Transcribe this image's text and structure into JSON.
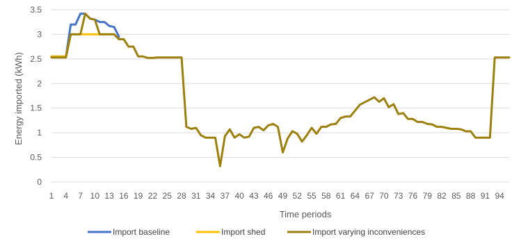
{
  "chart_data": {
    "type": "line",
    "title": "",
    "xlabel": "Time periods",
    "ylabel": "Energy imported (kWh)",
    "ylim": [
      0,
      3.5
    ],
    "yticks": [
      "0",
      "0.5",
      "1",
      "1.5",
      "2",
      "2.5",
      "3",
      "3.5"
    ],
    "x_tick_labels": [
      "1",
      "4",
      "7",
      "10",
      "13",
      "16",
      "19",
      "22",
      "25",
      "28",
      "31",
      "34",
      "37",
      "40",
      "43",
      "46",
      "49",
      "52",
      "55",
      "58",
      "61",
      "64",
      "67",
      "70",
      "73",
      "76",
      "79",
      "82",
      "85",
      "88",
      "91",
      "94"
    ],
    "grid": "horizontal",
    "legend_position": "bottom",
    "series": [
      {
        "name": "Import baseline",
        "color": "#4472C4",
        "x": [
          1,
          2,
          3,
          4,
          5,
          6,
          7,
          8,
          9,
          10,
          11,
          12,
          13,
          14,
          15
        ],
        "values": [
          2.55,
          2.55,
          2.55,
          2.55,
          3.2,
          3.2,
          3.42,
          3.42,
          3.32,
          3.3,
          3.25,
          3.25,
          3.17,
          3.15,
          2.95
        ]
      },
      {
        "name": "Import shed",
        "color": "#FFC000",
        "x": [
          1,
          2,
          3,
          4,
          5,
          6,
          7,
          8,
          9,
          10,
          11,
          12,
          13,
          14,
          15
        ],
        "values": [
          2.55,
          2.55,
          2.55,
          2.55,
          3.0,
          3.0,
          3.0,
          3.0,
          3.0,
          3.0,
          3.0,
          3.0,
          3.0,
          3.0,
          2.9
        ]
      },
      {
        "name": "Import varying inconveniences",
        "color": "#9C7F0C",
        "x": [
          1,
          2,
          3,
          4,
          5,
          6,
          7,
          8,
          9,
          10,
          11,
          12,
          13,
          14,
          15,
          16,
          17,
          18,
          19,
          20,
          21,
          22,
          23,
          24,
          25,
          26,
          27,
          28,
          29,
          30,
          31,
          32,
          33,
          34,
          35,
          36,
          37,
          38,
          39,
          40,
          41,
          42,
          43,
          44,
          45,
          46,
          47,
          48,
          49,
          50,
          51,
          52,
          53,
          54,
          55,
          56,
          57,
          58,
          59,
          60,
          61,
          62,
          63,
          64,
          65,
          66,
          67,
          68,
          69,
          70,
          71,
          72,
          73,
          74,
          75,
          76,
          77,
          78,
          79,
          80,
          81,
          82,
          83,
          84,
          85,
          86,
          87,
          88,
          89,
          90,
          91,
          92,
          93,
          94,
          95,
          96
        ],
        "values": [
          2.53,
          2.53,
          2.53,
          2.53,
          3.0,
          3.0,
          3.0,
          3.42,
          3.32,
          3.3,
          3.0,
          3.0,
          3.0,
          3.0,
          2.9,
          2.9,
          2.75,
          2.75,
          2.55,
          2.55,
          2.52,
          2.52,
          2.53,
          2.53,
          2.53,
          2.53,
          2.53,
          2.53,
          1.12,
          1.08,
          1.1,
          0.95,
          0.9,
          0.9,
          0.9,
          0.32,
          0.93,
          1.07,
          0.9,
          0.97,
          0.9,
          0.92,
          1.1,
          1.12,
          1.05,
          1.15,
          1.18,
          1.12,
          0.6,
          0.88,
          1.03,
          0.98,
          0.82,
          0.95,
          1.1,
          0.98,
          1.12,
          1.12,
          1.17,
          1.18,
          1.3,
          1.33,
          1.33,
          1.45,
          1.57,
          1.62,
          1.67,
          1.72,
          1.63,
          1.7,
          1.52,
          1.58,
          1.38,
          1.4,
          1.28,
          1.28,
          1.22,
          1.22,
          1.18,
          1.17,
          1.12,
          1.12,
          1.1,
          1.08,
          1.08,
          1.07,
          1.03,
          1.03,
          0.9,
          0.9,
          0.9,
          0.9,
          2.53,
          2.53,
          2.53,
          2.53
        ]
      }
    ]
  }
}
